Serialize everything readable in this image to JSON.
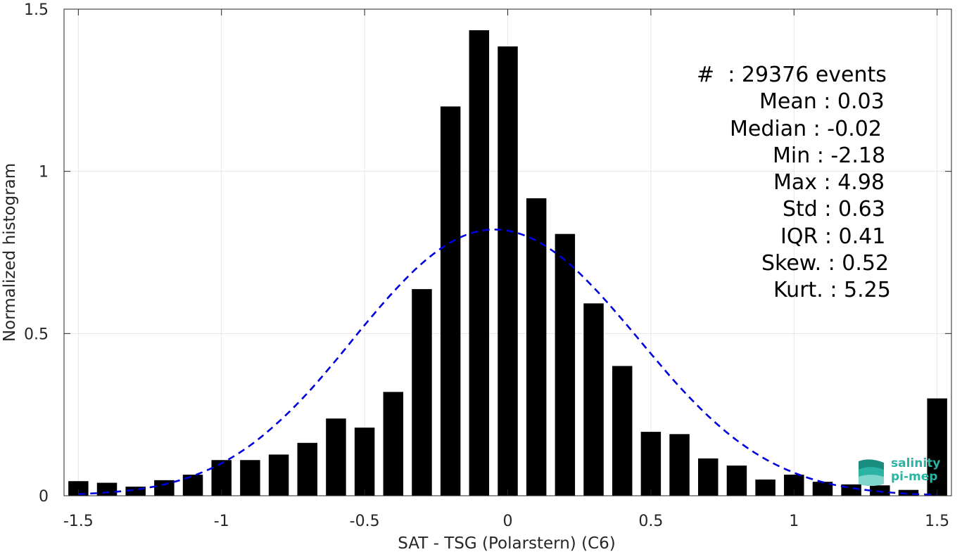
{
  "chart_data": {
    "type": "bar",
    "xlabel": "SAT - TSG (Polarstern) (C6)",
    "ylabel": "Normalized histogram",
    "xlim": [
      -1.55,
      1.55
    ],
    "ylim": [
      0,
      1.5
    ],
    "xticks": [
      -1.5,
      -1,
      -0.5,
      0,
      0.5,
      1,
      1.5
    ],
    "xtick_labels": [
      "-1.5",
      "-1",
      "-0.5",
      "0",
      "0.5",
      "1",
      "1.5"
    ],
    "yticks": [
      0,
      0.5,
      1,
      1.5
    ],
    "ytick_labels": [
      "0",
      "0.5",
      "1",
      "1.5"
    ],
    "grid": true,
    "bin_width": 0.1,
    "bar_width": 0.07,
    "bars": {
      "x": [
        -1.5,
        -1.4,
        -1.3,
        -1.2,
        -1.1,
        -1.0,
        -0.9,
        -0.8,
        -0.7,
        -0.6,
        -0.5,
        -0.4,
        -0.3,
        -0.2,
        -0.1,
        0.0,
        0.1,
        0.2,
        0.3,
        0.4,
        0.5,
        0.6,
        0.7,
        0.8,
        0.9,
        1.0,
        1.1,
        1.2,
        1.3,
        1.4,
        1.5
      ],
      "values": [
        0.045,
        0.04,
        0.028,
        0.048,
        0.065,
        0.11,
        0.11,
        0.127,
        0.163,
        0.238,
        0.21,
        0.32,
        0.637,
        1.2,
        1.435,
        1.385,
        0.917,
        0.807,
        0.593,
        0.4,
        0.197,
        0.19,
        0.115,
        0.093,
        0.05,
        0.065,
        0.043,
        0.035,
        0.032,
        0.018,
        0.3
      ]
    },
    "fit_curve": {
      "style": "dashed",
      "color": "#0000dd",
      "x": [
        -1.5,
        -1.4,
        -1.3,
        -1.2,
        -1.1,
        -1.0,
        -0.9,
        -0.8,
        -0.7,
        -0.6,
        -0.5,
        -0.4,
        -0.3,
        -0.2,
        -0.1,
        0.0,
        0.1,
        0.2,
        0.3,
        0.4,
        0.5,
        0.6,
        0.7,
        0.8,
        0.9,
        1.0,
        1.1,
        1.2,
        1.3,
        1.4,
        1.5
      ],
      "y": [
        0.005,
        0.01,
        0.019,
        0.035,
        0.061,
        0.1,
        0.155,
        0.228,
        0.316,
        0.418,
        0.526,
        0.628,
        0.716,
        0.781,
        0.816,
        0.817,
        0.786,
        0.726,
        0.642,
        0.543,
        0.438,
        0.336,
        0.246,
        0.171,
        0.113,
        0.071,
        0.042,
        0.024,
        0.013,
        0.006,
        0.003
      ]
    },
    "colors": {
      "bars": "#000000",
      "fit": "#0000dd",
      "grid": "#e6e6e6",
      "axes": "#262626"
    }
  },
  "stats": {
    "lines": [
      "#  : 29376 events",
      "Mean : 0.03",
      "Median : -0.02",
      "Min : -2.18",
      "Max : 4.98",
      "Std : 0.63",
      "IQR : 0.41",
      "Skew. : 0.52",
      "Kurt. : 5.25"
    ]
  },
  "logo": {
    "line1": "salinity",
    "line2": "pi-mep",
    "color": "#2bb3a3",
    "icon": "salinity-wave-icon"
  }
}
